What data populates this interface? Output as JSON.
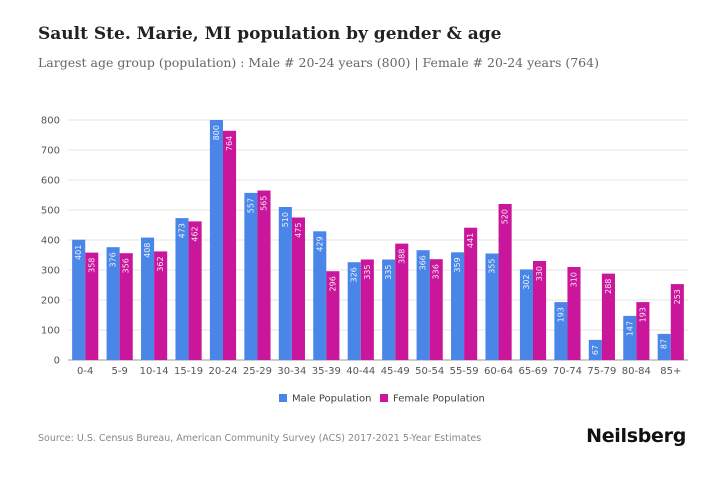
{
  "title": "Sault Ste. Marie, MI population by gender & age",
  "subtitle": "Largest age group (population) : Male # 20-24 years (800) | Female # 20-24 years (764)",
  "source": "Source: U.S. Census Bureau, American Community Survey (ACS) 2017-2021 5-Year Estimates",
  "brand": "Neilsberg",
  "colors": {
    "male": "#4a86e8",
    "female": "#c9169b",
    "grid": "#e6e6e6",
    "axis": "#999999"
  },
  "chart_data": {
    "type": "bar",
    "title": "Sault Ste. Marie, MI population by gender & age",
    "xlabel": "",
    "ylabel": "",
    "ylim": [
      0,
      800
    ],
    "yticks": [
      0,
      100,
      200,
      300,
      400,
      500,
      600,
      700,
      800
    ],
    "grid": true,
    "legend": "bottom",
    "categories": [
      "0-4",
      "5-9",
      "10-14",
      "15-19",
      "20-24",
      "25-29",
      "30-34",
      "35-39",
      "40-44",
      "45-49",
      "50-54",
      "55-59",
      "60-64",
      "65-69",
      "70-74",
      "75-79",
      "80-84",
      "85+"
    ],
    "series": [
      {
        "name": "Male Population",
        "values": [
          401,
          376,
          408,
          473,
          800,
          557,
          510,
          429,
          326,
          335,
          366,
          359,
          355,
          302,
          193,
          67,
          147,
          87
        ]
      },
      {
        "name": "Female Population",
        "values": [
          358,
          356,
          362,
          462,
          764,
          565,
          475,
          296,
          335,
          388,
          336,
          441,
          520,
          330,
          310,
          288,
          193,
          253
        ]
      }
    ]
  }
}
